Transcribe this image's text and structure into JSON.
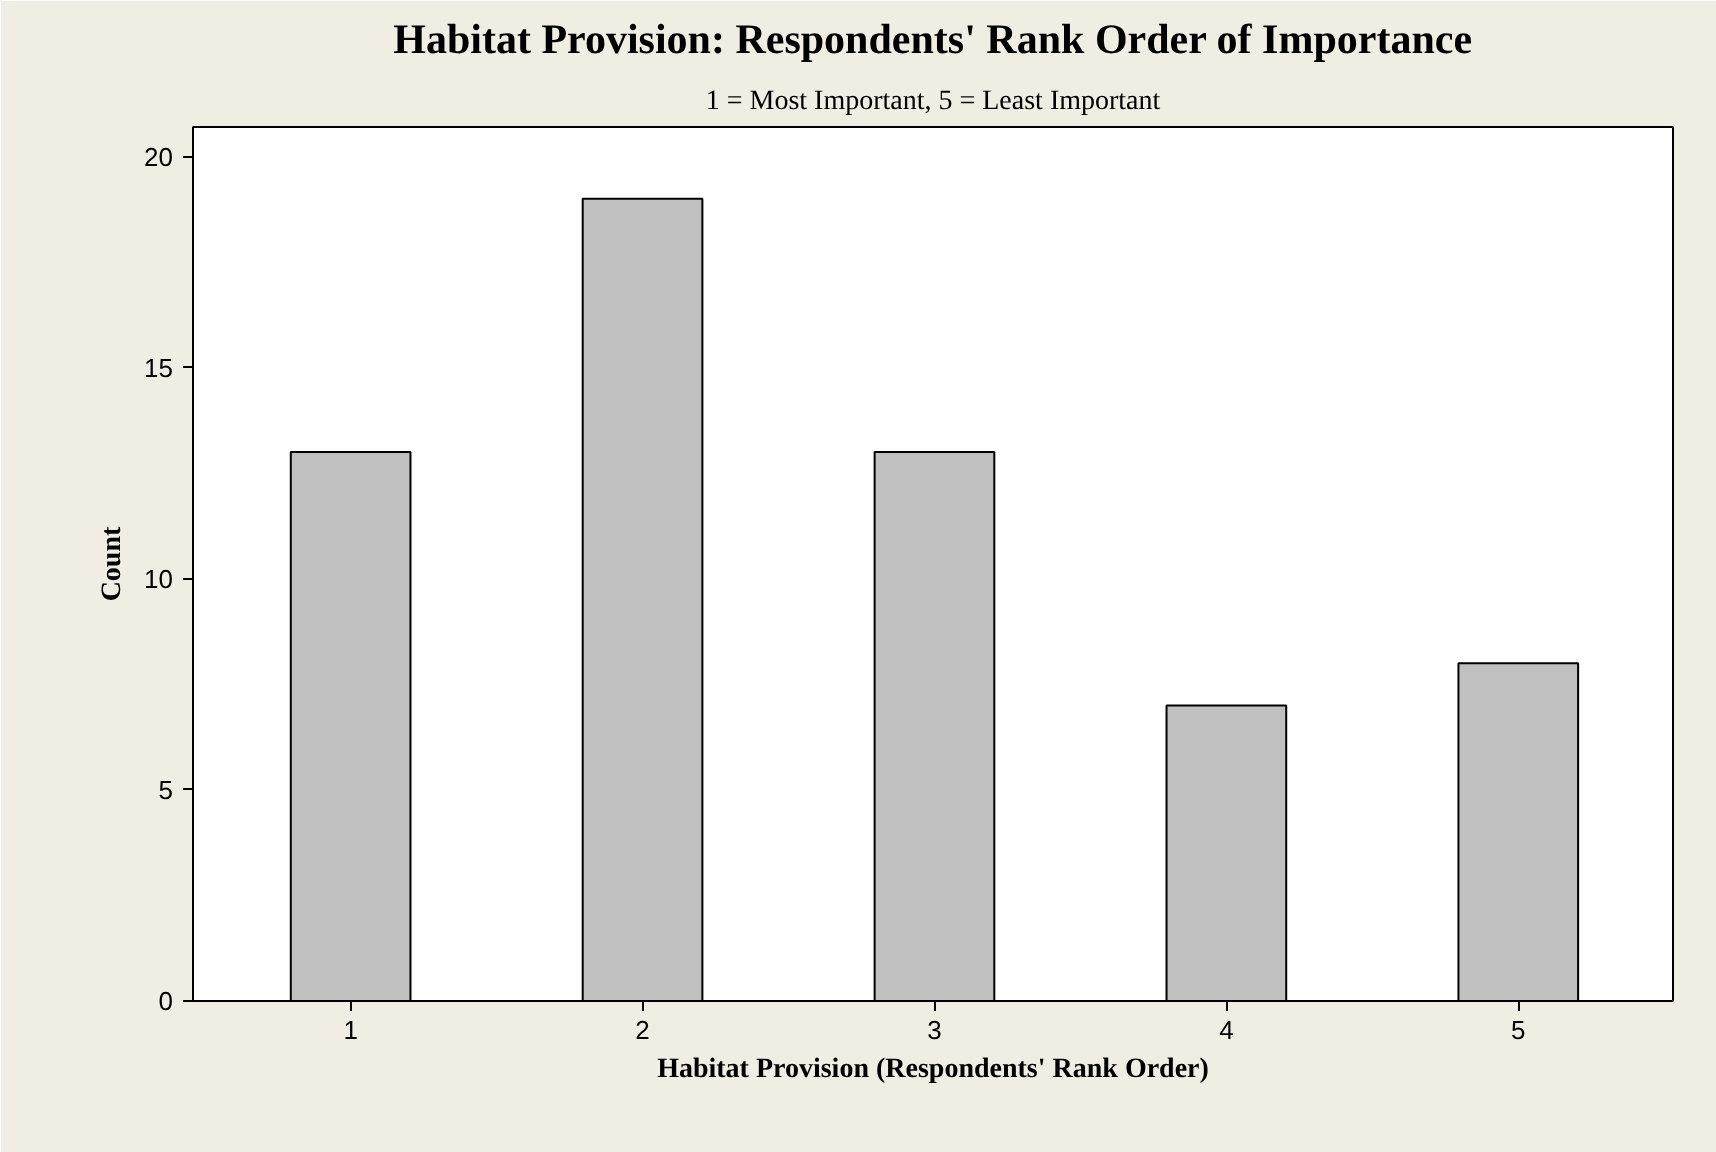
{
  "chart_data": {
    "type": "bar",
    "title": "Habitat Provision: Respondents' Rank Order of Importance",
    "subtitle": "1 = Most Important, 5 = Least Important",
    "xlabel": "Habitat Provision (Respondents' Rank Order)",
    "ylabel": "Count",
    "categories": [
      "1",
      "2",
      "3",
      "4",
      "5"
    ],
    "values": [
      13,
      19,
      13,
      7,
      8
    ],
    "color": "#c0c0c0",
    "ylim": [
      0,
      20.7
    ],
    "yticks": [
      0,
      5,
      10,
      15,
      20
    ],
    "grid": false
  }
}
